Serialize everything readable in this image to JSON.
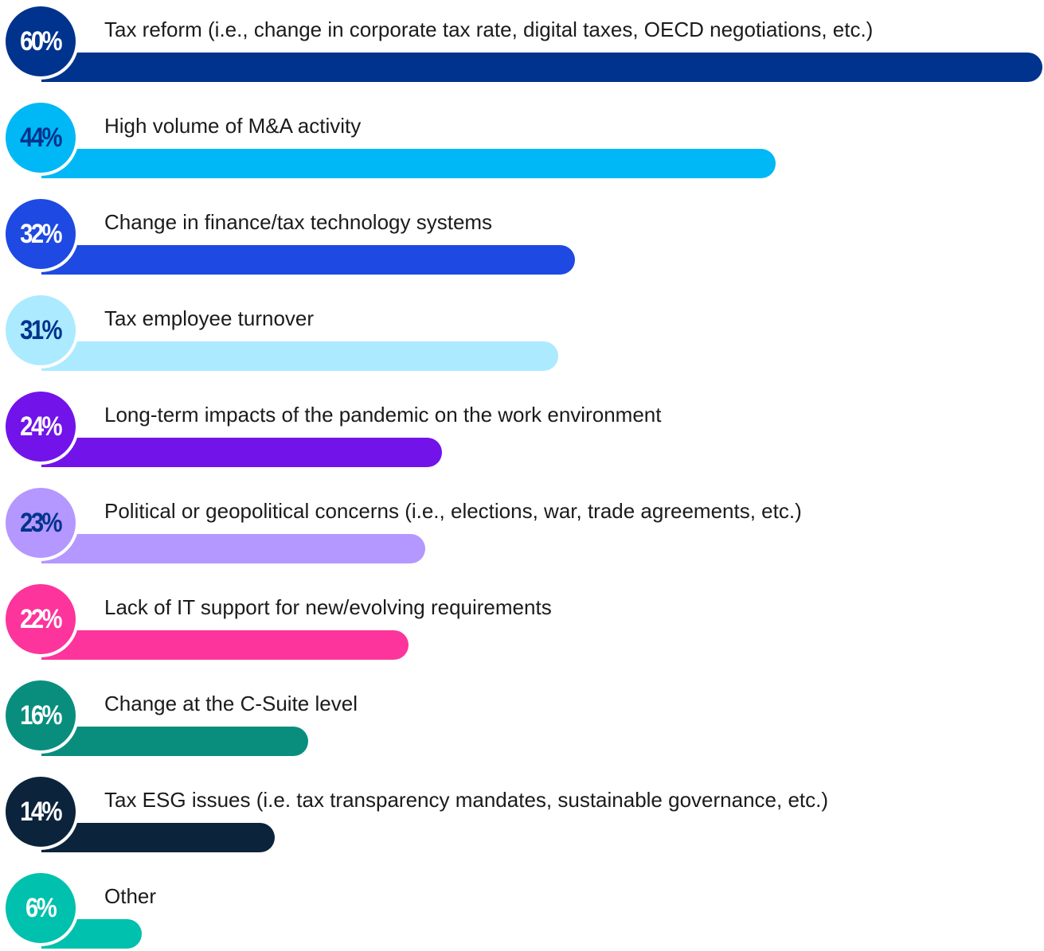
{
  "chart_data": {
    "type": "bar",
    "orientation": "horizontal",
    "value_suffix": "%",
    "categories": [
      "Tax reform (i.e., change in corporate tax rate, digital taxes, OECD negotiations, etc.)",
      "High volume of M&A activity",
      "Change in finance/tax technology systems",
      "Tax employee turnover",
      "Long-term impacts of the pandemic on the work environment",
      "Political or geopolitical concerns (i.e., elections, war, trade agreements, etc.)",
      "Lack of IT support for new/evolving requirements",
      "Change at the C-Suite level",
      "Tax ESG issues (i.e. tax transparency mandates, sustainable governance, etc.)",
      "Other"
    ],
    "values": [
      60,
      44,
      32,
      31,
      24,
      23,
      22,
      16,
      14,
      6
    ],
    "value_labels": [
      "60%",
      "44%",
      "32%",
      "31%",
      "24%",
      "23%",
      "22%",
      "16%",
      "14%",
      "6%"
    ],
    "colors": [
      "#00338D",
      "#00B8F5",
      "#1E49E2",
      "#ACEAFF",
      "#7213EA",
      "#B497FF",
      "#FD349C",
      "#098E7E",
      "#0C233C",
      "#00C0AE"
    ],
    "label_text_colors": [
      "#ffffff",
      "#00338D",
      "#ffffff",
      "#00338D",
      "#ffffff",
      "#00338D",
      "#ffffff",
      "#ffffff",
      "#ffffff",
      "#ffffff"
    ],
    "xlim": [
      0,
      60
    ],
    "grid": false,
    "legend": "none"
  }
}
